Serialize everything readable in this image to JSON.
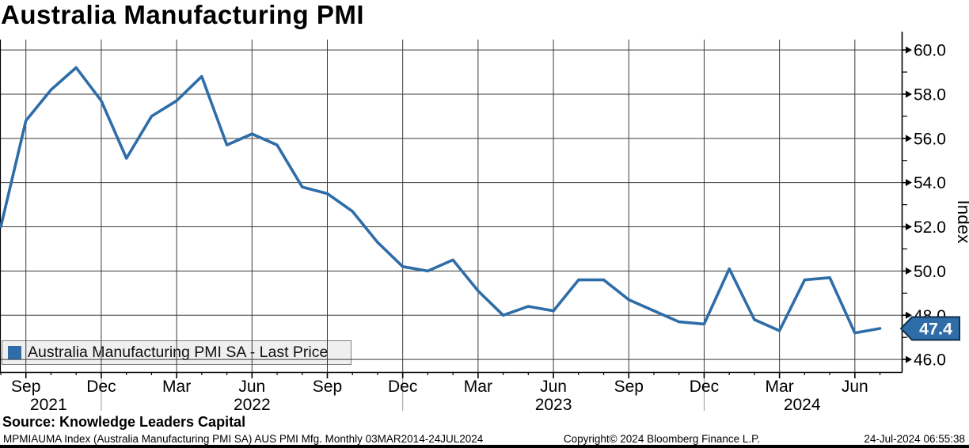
{
  "title": "Australia Manufacturing PMI",
  "legend": {
    "swatch_icon": "blue-square",
    "swatch_color": "#2e6da8",
    "label": "Australia Manufacturing PMI SA - Last Price"
  },
  "last_price_badge": {
    "value": "47.4",
    "fill": "#2e6da8",
    "border_color": "#123049",
    "text_color": "#ffffff"
  },
  "source_line": "Source: Knowledge Leaders Capital",
  "footer": {
    "left": "MPMIAUMA Index (Australia Manufacturing PMI SA) AUS PMI Mfg.  Monthly 03MAR2014-24JUL2024",
    "center": "Copyright© 2024 Bloomberg Finance L.P.",
    "right": "24-Jul-2024 06:55:38"
  },
  "chart_data": {
    "type": "line",
    "title": "Australia Manufacturing PMI",
    "ylabel": "Index",
    "ylim": [
      45.4,
      60.5
    ],
    "grid": true,
    "legend_position": "bottom-left",
    "line_color": "#2e6da8",
    "grid_color": "#3a3a3a",
    "axis_color": "#000000",
    "year_separator_color": "#999999",
    "y_ticks_major": [
      60.0,
      58.0,
      56.0,
      54.0,
      52.0,
      50.0,
      48.0,
      46.0
    ],
    "y_ticks_minor": [
      59.0,
      57.0,
      55.0,
      53.0,
      51.0,
      49.0,
      47.0
    ],
    "x_ticks": [
      {
        "month_index": 1,
        "label": "Sep"
      },
      {
        "month_index": 4,
        "label": "Dec"
      },
      {
        "month_index": 7,
        "label": "Mar"
      },
      {
        "month_index": 10,
        "label": "Jun"
      },
      {
        "month_index": 13,
        "label": "Sep"
      },
      {
        "month_index": 16,
        "label": "Dec"
      },
      {
        "month_index": 19,
        "label": "Mar"
      },
      {
        "month_index": 22,
        "label": "Jun"
      },
      {
        "month_index": 25,
        "label": "Sep"
      },
      {
        "month_index": 28,
        "label": "Dec"
      },
      {
        "month_index": 31,
        "label": "Mar"
      },
      {
        "month_index": 34,
        "label": "Jun"
      }
    ],
    "year_labels": [
      {
        "month_index": 1.9,
        "label": "2021"
      },
      {
        "month_index": 10.0,
        "label": "2022"
      },
      {
        "month_index": 22.0,
        "label": "2023"
      },
      {
        "month_index": 31.9,
        "label": "2024"
      }
    ],
    "year_separator_month_index": [
      4,
      16,
      28
    ],
    "last_price": 47.4,
    "series": [
      {
        "name": "Australia Manufacturing PMI SA - Last Price",
        "color": "#2e6da8",
        "x": [
          "Aug 2021",
          "Sep 2021",
          "Oct 2021",
          "Nov 2021",
          "Dec 2021",
          "Jan 2022",
          "Feb 2022",
          "Mar 2022",
          "Apr 2022",
          "May 2022",
          "Jun 2022",
          "Jul 2022",
          "Aug 2022",
          "Sep 2022",
          "Oct 2022",
          "Nov 2022",
          "Dec 2022",
          "Jan 2023",
          "Feb 2023",
          "Mar 2023",
          "Apr 2023",
          "May 2023",
          "Jun 2023",
          "Jul 2023",
          "Aug 2023",
          "Sep 2023",
          "Oct 2023",
          "Nov 2023",
          "Dec 2023",
          "Jan 2024",
          "Feb 2024",
          "Mar 2024",
          "Apr 2024",
          "May 2024",
          "Jun 2024",
          "Jul 2024"
        ],
        "values": [
          52.0,
          56.8,
          58.2,
          59.2,
          57.7,
          55.1,
          57.0,
          57.7,
          58.8,
          55.7,
          56.2,
          55.7,
          53.8,
          53.5,
          52.7,
          51.3,
          50.2,
          50.0,
          50.5,
          49.1,
          48.0,
          48.4,
          48.2,
          49.6,
          49.6,
          48.7,
          48.2,
          47.7,
          47.6,
          50.1,
          47.8,
          47.3,
          49.6,
          49.7,
          47.2,
          47.4
        ]
      }
    ]
  }
}
